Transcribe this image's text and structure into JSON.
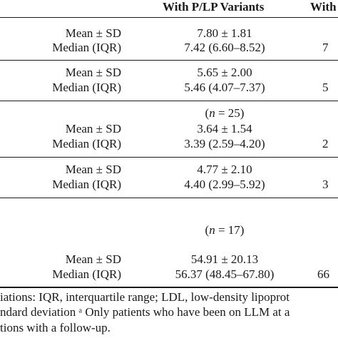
{
  "header": {
    "col_plp": "With P/LP Variants",
    "col_next_partial": "With"
  },
  "blocks": [
    {
      "rows": [
        {
          "label": "Mean ± SD",
          "value": "7.80 ± 1.81",
          "next": ""
        },
        {
          "label": "Median (IQR)",
          "value": "7.42 (6.60–8.52)",
          "next": "7"
        }
      ]
    },
    {
      "rows": [
        {
          "label": "Mean ± SD",
          "value": "5.65 ± 2.00",
          "next": ""
        },
        {
          "label": "Median (IQR)",
          "value": "5.46 (4.07–7.37)",
          "next": "5"
        }
      ]
    },
    {
      "n_label": "(n = 25)",
      "rows": [
        {
          "label": "Mean ± SD",
          "value": "3.64 ± 1.54",
          "next": ""
        },
        {
          "label": "Median (IQR)",
          "value": "3.39 (2.59–4.20)",
          "next": "2"
        }
      ]
    },
    {
      "rows": [
        {
          "label": "Mean ± SD",
          "value": "4.77 ± 2.10",
          "next": ""
        },
        {
          "label": "Median (IQR)",
          "value": "4.40 (2.99–5.92)",
          "next": "3"
        }
      ]
    },
    {
      "n_label": "(n = 17)",
      "rows": [
        {
          "label": "Mean ± SD",
          "value": "54.91 ± 20.13",
          "next": ""
        },
        {
          "label": "Median (IQR)",
          "value": "56.37 (48.45–67.80)",
          "next": "66"
        }
      ]
    }
  ],
  "footnotes": [
    "iations: IQR, interquartile range; LDL, low-density lipoprot",
    "ndard deviation ᵃ Only patients who have been on LLM at a",
    "tions with a follow-up."
  ]
}
